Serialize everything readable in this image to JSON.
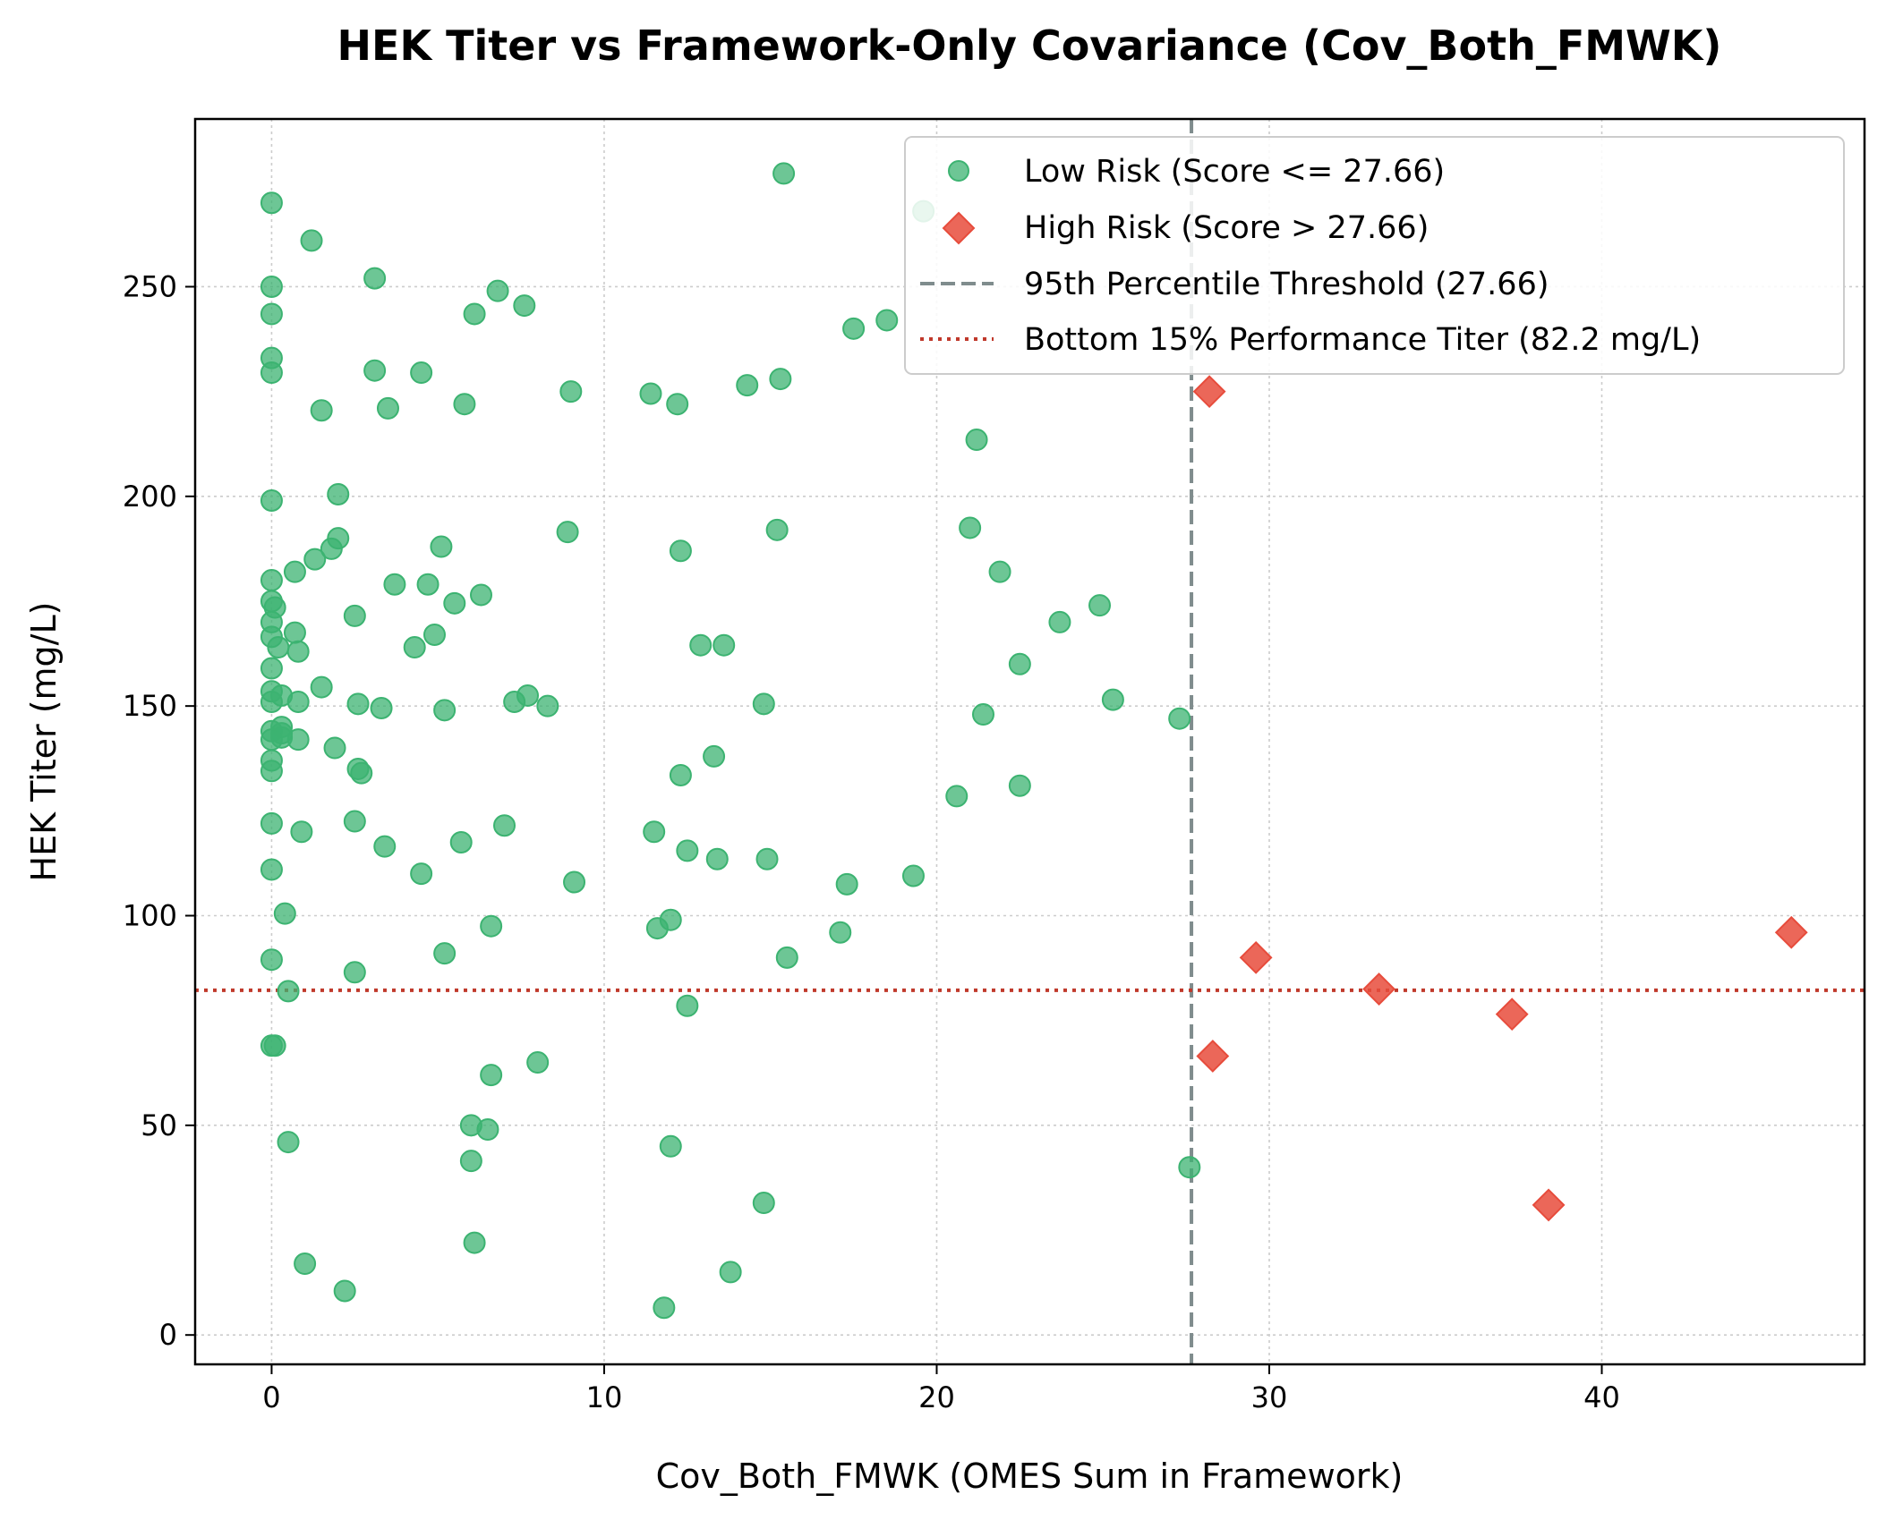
{
  "chart_data": {
    "type": "scatter",
    "title": "HEK Titer vs Framework-Only Covariance (Cov_Both_FMWK)",
    "xlabel": "Cov_Both_FMWK (OMES Sum in Framework)",
    "ylabel": "HEK Titer (mg/L)",
    "xlim": [
      -2.3,
      47.9
    ],
    "ylim": [
      -7,
      290
    ],
    "xticks": [
      0,
      10,
      20,
      30,
      40
    ],
    "yticks": [
      0,
      50,
      100,
      150,
      200,
      250
    ],
    "grid": true,
    "legend_position": "top-right",
    "colors": {
      "low_risk": "#3cb371",
      "high_risk": "#e74c3c",
      "threshold_line": "#7f8c8d",
      "titer_line": "#c0392b"
    },
    "series": [
      {
        "name": "Low Risk (Score <= 27.66)",
        "marker": "circle",
        "points": [
          [
            0,
            270
          ],
          [
            0,
            250
          ],
          [
            0,
            243.5
          ],
          [
            0,
            233
          ],
          [
            0,
            229.5
          ],
          [
            0,
            199
          ],
          [
            0,
            180
          ],
          [
            0,
            175
          ],
          [
            0.1,
            173.5
          ],
          [
            0,
            170
          ],
          [
            0,
            166.5
          ],
          [
            0.2,
            164
          ],
          [
            0,
            159
          ],
          [
            0,
            153.5
          ],
          [
            0.3,
            152.5
          ],
          [
            0,
            151
          ],
          [
            0.3,
            145
          ],
          [
            0,
            144
          ],
          [
            0.3,
            143.5
          ],
          [
            0.3,
            142.5
          ],
          [
            0,
            142
          ],
          [
            0,
            137
          ],
          [
            0,
            134.5
          ],
          [
            0,
            122
          ],
          [
            0,
            111
          ],
          [
            0.4,
            100.5
          ],
          [
            0,
            89.5
          ],
          [
            0.5,
            82
          ],
          [
            0,
            69
          ],
          [
            0.1,
            69
          ],
          [
            0.5,
            46
          ],
          [
            1.2,
            261
          ],
          [
            3.1,
            252
          ],
          [
            6.8,
            249
          ],
          [
            6.1,
            243.5
          ],
          [
            7.6,
            245.5
          ],
          [
            3.1,
            230
          ],
          [
            4.5,
            229.5
          ],
          [
            1.5,
            220.5
          ],
          [
            3.5,
            221
          ],
          [
            5.8,
            222
          ],
          [
            9,
            225
          ],
          [
            11.4,
            224.5
          ],
          [
            12.2,
            222
          ],
          [
            14.3,
            226.5
          ],
          [
            15.3,
            228
          ],
          [
            2,
            200.5
          ],
          [
            2,
            190
          ],
          [
            1.8,
            187.5
          ],
          [
            1.3,
            185
          ],
          [
            0.7,
            182
          ],
          [
            5.1,
            188
          ],
          [
            8.9,
            191.5
          ],
          [
            12.3,
            187
          ],
          [
            15.2,
            192
          ],
          [
            3.7,
            179
          ],
          [
            4.7,
            179
          ],
          [
            5.5,
            174.5
          ],
          [
            6.3,
            176.5
          ],
          [
            2.5,
            171.5
          ],
          [
            0.7,
            167.5
          ],
          [
            0.8,
            163
          ],
          [
            4.3,
            164
          ],
          [
            4.9,
            167
          ],
          [
            12.9,
            164.5
          ],
          [
            13.6,
            164.5
          ],
          [
            1.5,
            154.5
          ],
          [
            0.8,
            151
          ],
          [
            2.6,
            150.5
          ],
          [
            3.3,
            149.5
          ],
          [
            5.2,
            149
          ],
          [
            7.3,
            151
          ],
          [
            7.7,
            152.5
          ],
          [
            8.3,
            150
          ],
          [
            14.8,
            150.5
          ],
          [
            1.9,
            140
          ],
          [
            0.8,
            142
          ],
          [
            2.6,
            135
          ],
          [
            2.7,
            134
          ],
          [
            12.3,
            133.5
          ],
          [
            13.3,
            138
          ],
          [
            0.9,
            120
          ],
          [
            2.5,
            122.5
          ],
          [
            3.4,
            116.5
          ],
          [
            4.5,
            110
          ],
          [
            5.7,
            117.5
          ],
          [
            7,
            121.5
          ],
          [
            9.1,
            108
          ],
          [
            11.5,
            120
          ],
          [
            12.5,
            115.5
          ],
          [
            13.4,
            113.5
          ],
          [
            14.9,
            113.5
          ],
          [
            2.5,
            86.5
          ],
          [
            5.2,
            91
          ],
          [
            6.6,
            97.5
          ],
          [
            11.6,
            97
          ],
          [
            12,
            99
          ],
          [
            15.5,
            90
          ],
          [
            17.1,
            96
          ],
          [
            17.3,
            107.5
          ],
          [
            19.3,
            109.5
          ],
          [
            12.5,
            78.5
          ],
          [
            6.6,
            62
          ],
          [
            8,
            65
          ],
          [
            6,
            50
          ],
          [
            6.5,
            49
          ],
          [
            6,
            41.5
          ],
          [
            12,
            45
          ],
          [
            14.8,
            31.5
          ],
          [
            6.1,
            22
          ],
          [
            1,
            17
          ],
          [
            2.2,
            10.5
          ],
          [
            11.8,
            6.5
          ],
          [
            13.8,
            15
          ],
          [
            15.4,
            277
          ],
          [
            19.6,
            268
          ],
          [
            17.5,
            240
          ],
          [
            18.5,
            242
          ],
          [
            21.2,
            213.5
          ],
          [
            21,
            192.5
          ],
          [
            21.9,
            182
          ],
          [
            22.5,
            160
          ],
          [
            23.7,
            170
          ],
          [
            24.9,
            174
          ],
          [
            25.3,
            151.5
          ],
          [
            21.4,
            148
          ],
          [
            27.3,
            147
          ],
          [
            20.6,
            128.5
          ],
          [
            22.5,
            131
          ],
          [
            27.6,
            40
          ]
        ]
      },
      {
        "name": "High Risk (Score > 27.66)",
        "marker": "diamond",
        "points": [
          [
            28.2,
            225
          ],
          [
            29.6,
            90
          ],
          [
            33.3,
            82.5
          ],
          [
            37.3,
            76.5
          ],
          [
            28.3,
            66.5
          ],
          [
            45.7,
            96
          ],
          [
            38.4,
            31
          ]
        ]
      }
    ],
    "reference_lines": [
      {
        "name": "95th Percentile Threshold (27.66)",
        "orientation": "vertical",
        "value": 27.66,
        "style": "dashed"
      },
      {
        "name": "Bottom 15% Performance Titer (82.2 mg/L)",
        "orientation": "horizontal",
        "value": 82.2,
        "style": "dotted"
      }
    ]
  }
}
